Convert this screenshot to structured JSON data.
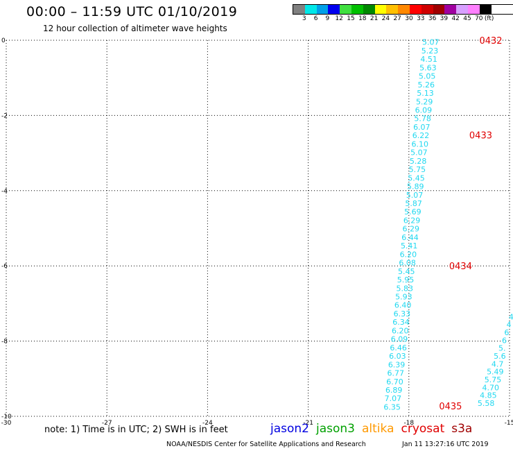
{
  "header": {
    "title": "00:00 – 11:59 UTC 01/10/2019",
    "subtitle": "12 hour collection of altimeter wave heights"
  },
  "color_scale": {
    "unit_label": "(ft)",
    "stops": [
      {
        "label": "3",
        "color": "#808080"
      },
      {
        "label": "6",
        "color": "#00e8e8"
      },
      {
        "label": "9",
        "color": "#00a0e8"
      },
      {
        "label": "12",
        "color": "#0000f0"
      },
      {
        "label": "15",
        "color": "#40e040"
      },
      {
        "label": "18",
        "color": "#00c000"
      },
      {
        "label": "21",
        "color": "#008800"
      },
      {
        "label": "24",
        "color": "#ffff00"
      },
      {
        "label": "27",
        "color": "#ffc000"
      },
      {
        "label": "30",
        "color": "#ff8800"
      },
      {
        "label": "33",
        "color": "#ff0000"
      },
      {
        "label": "36",
        "color": "#d00000"
      },
      {
        "label": "39",
        "color": "#a00000"
      },
      {
        "label": "42",
        "color": "#a000a0"
      },
      {
        "label": "45",
        "color": "#d8a0ff"
      },
      {
        "label": "70",
        "color": "#ff80ff"
      },
      {
        "label": "",
        "color": "#000000"
      }
    ]
  },
  "map": {
    "lon_ticks": [
      "-30",
      "-27",
      "-24",
      "-21",
      "-18",
      "-15"
    ],
    "lat_ticks": [
      "0",
      "-2",
      "-4",
      "-6",
      "-8",
      "-10"
    ],
    "lon_range": [
      -30,
      -15
    ],
    "lat_range": [
      0,
      -10
    ],
    "primary_track": {
      "color": "#20d8f0",
      "start": [
        -17.35,
        -0.05
      ],
      "end": [
        -18.5,
        -9.75
      ],
      "values": [
        "5.07",
        "5.23",
        "4.51",
        "5.63",
        "5.05",
        "5.26",
        "5.13",
        "5.29",
        "6.09",
        "5.78",
        "6.07",
        "6.22",
        "6.10",
        "5.07",
        "5.28",
        "5.75",
        "5.45",
        "5.89",
        "5.07",
        "5.87",
        "5.69",
        "6.29",
        "6.29",
        "6.44",
        "5.41",
        "6.20",
        "6.08",
        "5.45",
        "5.95",
        "5.83",
        "5.93",
        "6.40",
        "6.33",
        "6.34",
        "6.20",
        "6.09",
        "6.46",
        "6.03",
        "6.39",
        "6.77",
        "6.70",
        "6.89",
        "7.07",
        "6.35"
      ]
    },
    "secondary_track": {
      "color": "#20d8f0",
      "start": [
        -14.95,
        -7.35
      ],
      "end": [
        -15.7,
        -9.65
      ],
      "values": [
        "4",
        "4",
        "6",
        "6",
        "5.",
        "5.6",
        "4.7",
        "5.49",
        "5.75",
        "4.70",
        "4.85",
        "5.58"
      ]
    },
    "time_labels": [
      {
        "text": "0432",
        "lon": -15.9,
        "lat": 0.0
      },
      {
        "text": "0433",
        "lon": -16.2,
        "lat": -2.52
      },
      {
        "text": "0434",
        "lon": -16.8,
        "lat": -6.0
      },
      {
        "text": "0435",
        "lon": -17.1,
        "lat": -9.72
      }
    ],
    "time_label_color": "#e00000"
  },
  "note": "note: 1) Time is in UTC; 2) SWH is in feet",
  "legend": [
    {
      "name": "jason2",
      "color": "#0000e0"
    },
    {
      "name": "jason3",
      "color": "#00a000"
    },
    {
      "name": "altika",
      "color": "#ff9900"
    },
    {
      "name": "cryosat",
      "color": "#e00000"
    },
    {
      "name": "s3a",
      "color": "#a00000"
    }
  ],
  "footer": {
    "credit": "NOAA/NESDIS Center for Satellite Applications and Research",
    "timestamp": "Jan 11 13:27:16 UTC 2019"
  }
}
